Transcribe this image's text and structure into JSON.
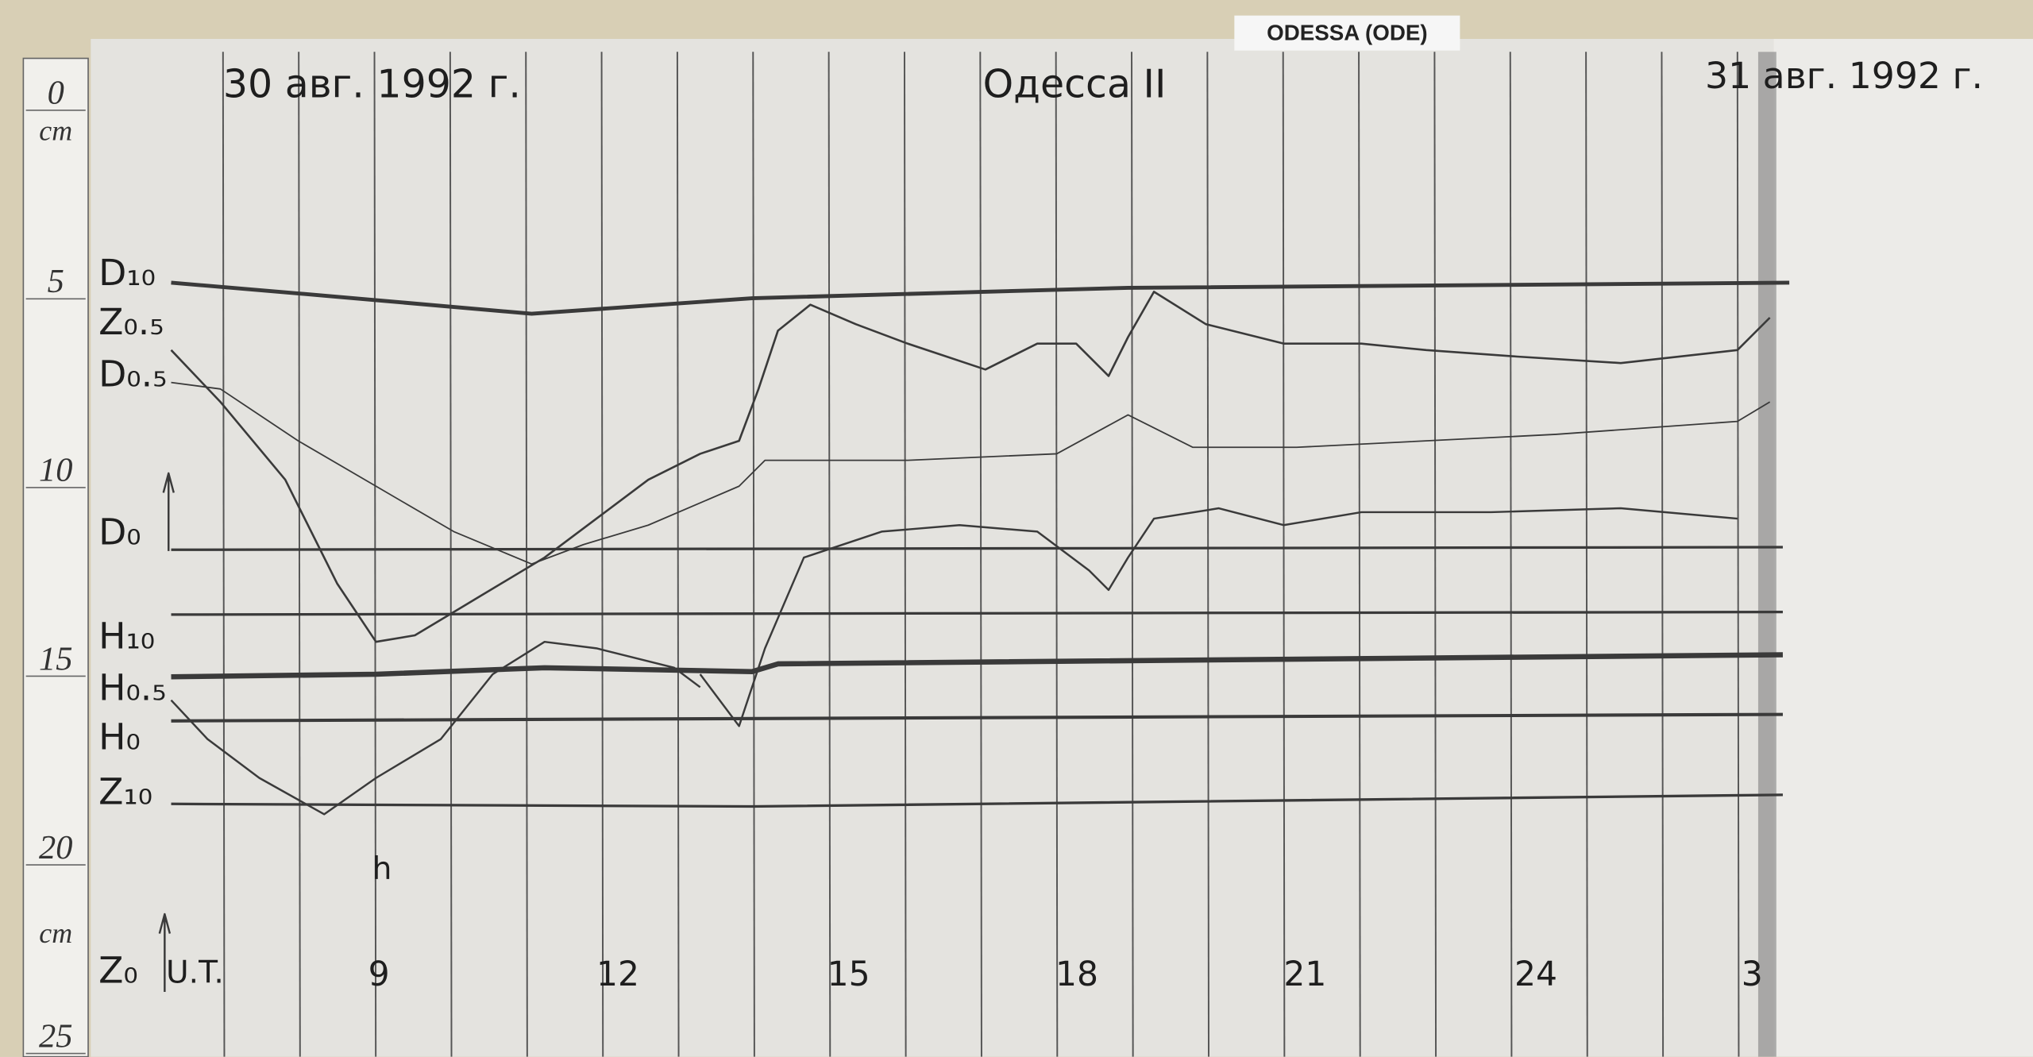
{
  "sign": "ODESSA (ODE)",
  "header": {
    "date_left": "30 авг. 1992 г.",
    "title": "Одесса II",
    "date_right": "31 авг. 1992 г."
  },
  "ruler": {
    "marks": [
      "0",
      "5",
      "10",
      "15",
      "20",
      "25"
    ],
    "unit_top": "cm",
    "unit_bottom": "cm"
  },
  "traces": {
    "labels": [
      "D₁₀",
      "Z₀.₅",
      "D₀.₅",
      "D₀",
      "H₁₀",
      "H₀.₅",
      "H₀",
      "Z₁₀",
      "Z₀"
    ]
  },
  "time_axis": {
    "unit": "U.T.",
    "hour_symbol": "h",
    "ticks": [
      "9",
      "12",
      "15",
      "18",
      "21",
      "24",
      "3"
    ]
  }
}
